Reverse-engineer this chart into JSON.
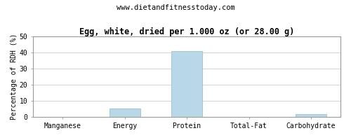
{
  "title": "Egg, white, dried per 1.000 oz (or 28.00 g)",
  "subtitle": "www.dietandfitnesstoday.com",
  "ylabel": "Percentage of RDH (%)",
  "categories": [
    "Manganese",
    "Energy",
    "Protein",
    "Total-Fat",
    "Carbohydrate"
  ],
  "values": [
    0.0,
    5.2,
    41.0,
    0.0,
    2.0
  ],
  "bar_color": "#b8d8e8",
  "bar_edge_color": "#9bbfcf",
  "ylim": [
    0,
    50
  ],
  "yticks": [
    0,
    10,
    20,
    30,
    40,
    50
  ],
  "background_color": "#ffffff",
  "plot_bg_color": "#ffffff",
  "grid_color": "#cccccc",
  "border_color": "#999999",
  "title_fontsize": 8.5,
  "subtitle_fontsize": 7.5,
  "tick_fontsize": 7,
  "ylabel_fontsize": 7
}
